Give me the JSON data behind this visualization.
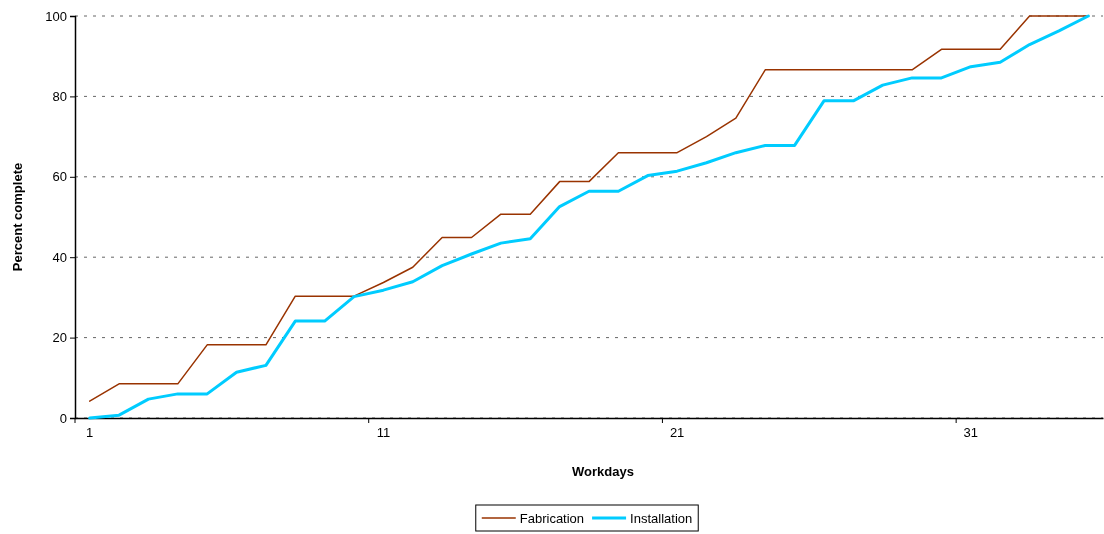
{
  "chart_data": {
    "type": "line",
    "xlabel": "Workdays",
    "ylabel": "Percent complete",
    "categories": [
      "1",
      null,
      null,
      null,
      null,
      null,
      null,
      null,
      null,
      null,
      "11",
      null,
      null,
      null,
      null,
      null,
      null,
      null,
      null,
      null,
      "21",
      null,
      null,
      null,
      null,
      null,
      null,
      null,
      null,
      null,
      "31",
      null,
      null,
      null,
      null
    ],
    "series": [
      {
        "name": "Fabrication",
        "color": "#993300",
        "values": [
          4.2,
          8.5,
          8.5,
          8.5,
          18.2,
          18.2,
          18.2,
          30.3,
          30.3,
          30.3,
          33.7,
          37.5,
          44.9,
          44.9,
          50.7,
          50.7,
          58.8,
          58.8,
          66.0,
          66.0,
          66.0,
          70.0,
          74.6,
          86.6,
          86.6,
          86.6,
          86.6,
          86.6,
          86.6,
          91.7,
          91.7,
          91.7,
          100,
          100,
          100
        ]
      },
      {
        "name": "Installation",
        "color": "#00ccff",
        "values": [
          0,
          0.7,
          4.7,
          6.0,
          6.0,
          11.4,
          13.1,
          24.1,
          24.1,
          30.2,
          31.8,
          33.9,
          37.9,
          40.8,
          43.5,
          44.6,
          52.6,
          56.4,
          56.4,
          60.3,
          61.4,
          63.5,
          66.0,
          67.8,
          67.8,
          78.9,
          78.9,
          82.8,
          84.6,
          84.6,
          87.4,
          88.5,
          92.9,
          96.3,
          100
        ]
      }
    ],
    "ylim": [
      0,
      100
    ],
    "yticks": [
      0,
      20,
      40,
      60,
      80,
      100
    ],
    "grid": "y",
    "legend": "bottom",
    "line_style": "solid",
    "marker": "none"
  }
}
